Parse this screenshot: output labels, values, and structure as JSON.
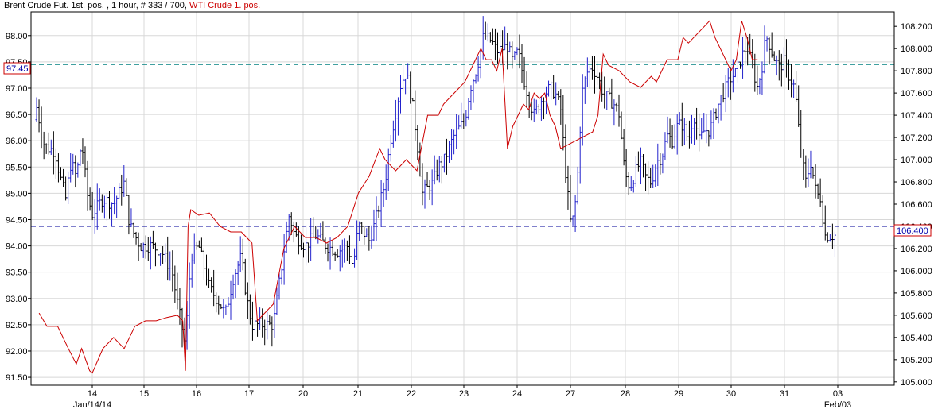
{
  "header": {
    "title_main": "Brent Crude Fut. 1st. pos. , 1 hour, # 333 / 700, ",
    "title_secondary": "WTI Crude 1. pos."
  },
  "colors": {
    "brent_up": "#2222cc",
    "brent_down": "#000000",
    "wti_line": "#cc0000",
    "left_hline": "#008080",
    "right_hline": "#000099",
    "grid": "#d8d8d8",
    "frame": "#000000"
  },
  "chart_data": {
    "type": "ohlc_with_line_overlay",
    "title": "Brent Crude Fut. 1st. pos. , 1 hour, # 333 / 700, WTI Crude 1. pos.",
    "x_axis": {
      "day_ticks": [
        "14",
        "15",
        "16",
        "17",
        "20",
        "21",
        "22",
        "23",
        "24",
        "27",
        "28",
        "29",
        "30",
        "31",
        "03"
      ],
      "date_labels": [
        {
          "label": "Jan/14/14",
          "under_tick": "14"
        },
        {
          "label": "Feb/03",
          "under_tick": "03"
        }
      ]
    },
    "left_axis": {
      "series": "Brent Crude Fut. 1st. pos.",
      "range": [
        91.35,
        98.45
      ],
      "ticks": [
        "91.50",
        "92.00",
        "92.50",
        "93.00",
        "93.50",
        "94.00",
        "94.50",
        "95.00",
        "95.50",
        "96.00",
        "96.50",
        "97.00",
        "97.50",
        "98.00"
      ],
      "marker": {
        "label": "97.45",
        "value": 97.45
      }
    },
    "right_axis": {
      "series": "WTI Crude 1. pos.",
      "range": [
        104.97,
        108.33
      ],
      "ticks": [
        "105.000",
        "105.200",
        "105.400",
        "105.600",
        "105.800",
        "106.000",
        "106.200",
        "106.400",
        "106.600",
        "106.800",
        "107.000",
        "107.200",
        "107.400",
        "107.600",
        "107.800",
        "108.000",
        "108.200"
      ],
      "marker": {
        "label": "106.400",
        "value": 106.4
      }
    },
    "wti_series": {
      "name": "WTI Crude 1. pos.",
      "points": [
        [
          0.0,
          105.62
        ],
        [
          0.15,
          105.5
        ],
        [
          0.35,
          105.5
        ],
        [
          0.55,
          105.3
        ],
        [
          0.7,
          105.16
        ],
        [
          0.8,
          105.3
        ],
        [
          0.95,
          105.1
        ],
        [
          1.0,
          105.08
        ],
        [
          1.2,
          105.3
        ],
        [
          1.4,
          105.4
        ],
        [
          1.6,
          105.3
        ],
        [
          1.8,
          105.5
        ],
        [
          2.0,
          105.55
        ],
        [
          2.2,
          105.55
        ],
        [
          2.4,
          105.58
        ],
        [
          2.6,
          105.6
        ],
        [
          2.7,
          105.55
        ],
        [
          2.75,
          105.1
        ],
        [
          2.8,
          106.4
        ],
        [
          2.85,
          106.55
        ],
        [
          3.0,
          106.5
        ],
        [
          3.2,
          106.52
        ],
        [
          3.4,
          106.4
        ],
        [
          3.6,
          106.35
        ],
        [
          3.8,
          106.35
        ],
        [
          3.9,
          106.3
        ],
        [
          4.0,
          106.25
        ],
        [
          4.1,
          105.55
        ],
        [
          4.2,
          105.6
        ],
        [
          4.4,
          105.7
        ],
        [
          4.6,
          106.2
        ],
        [
          4.8,
          106.4
        ],
        [
          5.0,
          106.3
        ],
        [
          5.2,
          106.3
        ],
        [
          5.4,
          106.25
        ],
        [
          5.6,
          106.3
        ],
        [
          5.8,
          106.4
        ],
        [
          6.0,
          106.7
        ],
        [
          6.2,
          106.85
        ],
        [
          6.4,
          107.1
        ],
        [
          6.5,
          107.0
        ],
        [
          6.7,
          106.9
        ],
        [
          6.9,
          107.0
        ],
        [
          7.1,
          106.9
        ],
        [
          7.3,
          107.4
        ],
        [
          7.5,
          107.4
        ],
        [
          7.6,
          107.5
        ],
        [
          7.8,
          107.6
        ],
        [
          8.0,
          107.7
        ],
        [
          8.2,
          107.9
        ],
        [
          8.3,
          108.0
        ],
        [
          8.4,
          107.9
        ],
        [
          8.5,
          107.9
        ],
        [
          8.6,
          107.8
        ],
        [
          8.7,
          108.0
        ],
        [
          8.8,
          107.1
        ],
        [
          8.9,
          107.3
        ],
        [
          9.0,
          107.4
        ],
        [
          9.1,
          107.5
        ],
        [
          9.2,
          107.45
        ],
        [
          9.3,
          107.6
        ],
        [
          9.4,
          107.55
        ],
        [
          9.5,
          107.6
        ],
        [
          9.6,
          107.4
        ],
        [
          9.7,
          107.3
        ],
        [
          9.8,
          107.1
        ],
        [
          10.0,
          107.15
        ],
        [
          10.2,
          107.2
        ],
        [
          10.4,
          107.25
        ],
        [
          10.5,
          107.4
        ],
        [
          10.6,
          107.95
        ],
        [
          10.7,
          107.85
        ],
        [
          10.9,
          107.8
        ],
        [
          11.1,
          107.7
        ],
        [
          11.3,
          107.65
        ],
        [
          11.5,
          107.75
        ],
        [
          11.6,
          107.7
        ],
        [
          11.8,
          107.9
        ],
        [
          12.0,
          107.9
        ],
        [
          12.1,
          108.1
        ],
        [
          12.2,
          108.05
        ],
        [
          12.4,
          108.15
        ],
        [
          12.5,
          108.2
        ],
        [
          12.6,
          108.25
        ],
        [
          12.7,
          108.1
        ],
        [
          12.8,
          108.0
        ],
        [
          13.0,
          107.8
        ],
        [
          13.1,
          107.9
        ],
        [
          13.2,
          108.25
        ],
        [
          13.3,
          108.1
        ],
        [
          13.4,
          107.9
        ],
        [
          13.5,
          107.9
        ]
      ]
    },
    "brent_bars": {
      "name": "Brent Crude Fut. 1st. pos."
    }
  }
}
